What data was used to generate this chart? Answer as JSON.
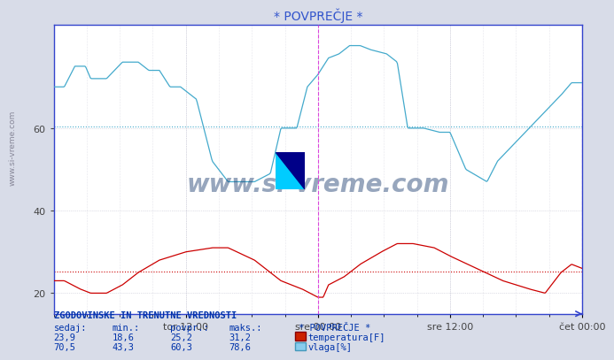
{
  "title": "* POVPREČJE *",
  "bg_color": "#d8dce8",
  "plot_bg_color": "#ffffff",
  "ylim": [
    15,
    85
  ],
  "yticks": [
    20,
    40,
    60
  ],
  "xlabel_ticks": [
    "tor 12:00",
    "sre 00:00",
    "sre 12:00",
    "čet 00:00"
  ],
  "xlabel_tick_positions": [
    0.25,
    0.5,
    0.75,
    1.0
  ],
  "grid_color": "#bbbbcc",
  "temp_color": "#cc0000",
  "hum_color": "#44aacc",
  "temp_avg": 25.2,
  "hum_avg": 60.3,
  "vline_color": "#dd44dd",
  "hline_temp_color": "#cc0000",
  "hline_hum_color": "#44aacc",
  "footer_text": "ZGODOVINSKE IN TRENUTNE VREDNOSTI",
  "footer_color": "#0033aa",
  "table_headers": [
    "sedaj:",
    "min.:",
    "povpr.:",
    "maks.:"
  ],
  "temp_values": [
    "23,9",
    "18,6",
    "25,2",
    "31,2"
  ],
  "hum_values": [
    "70,5",
    "43,3",
    "60,3",
    "78,6"
  ],
  "legend_label_temp": "temperatura[F]",
  "legend_label_hum": "vlaga[%]",
  "watermark": "www.si-vreme.com",
  "watermark_color": "#1a3a6e",
  "side_text": "www.si-vreme.com",
  "spine_color": "#3344cc",
  "arrow_color_x": "#3344cc",
  "arrow_color_y": "#cc0000"
}
